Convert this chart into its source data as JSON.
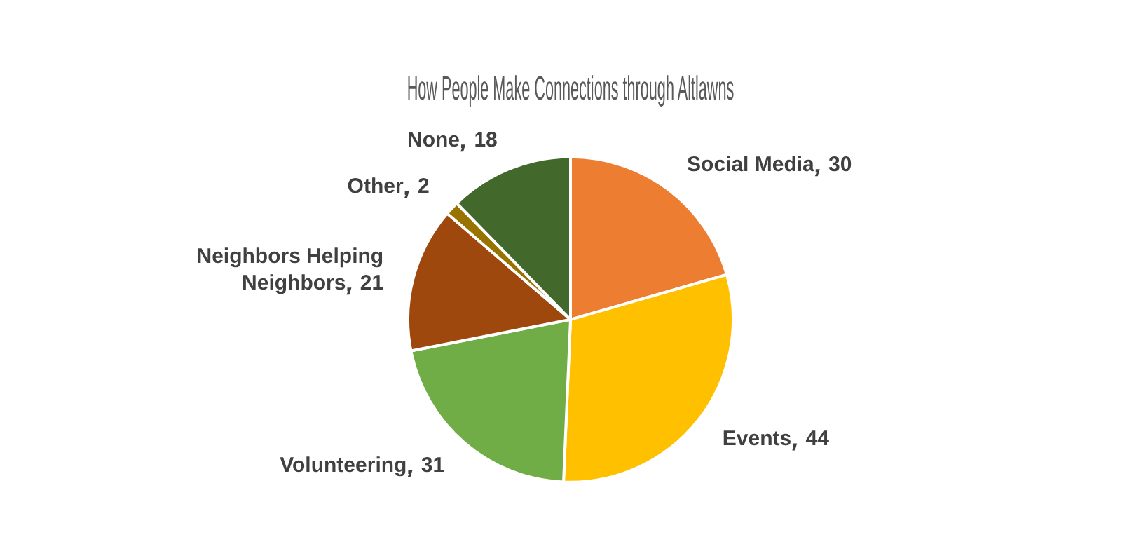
{
  "chart_data": {
    "type": "pie",
    "title": "How People Make Connections through Altlawns",
    "categories": [
      "Social Media",
      "Events",
      "Volunteering",
      "Neighbors Helping Neighbors",
      "Other",
      "None"
    ],
    "values": [
      30,
      44,
      31,
      21,
      2,
      18
    ],
    "colors": [
      "#ed7d31",
      "#ffc000",
      "#70ad47",
      "#9e480e",
      "#997300",
      "#43682b"
    ],
    "data_labels": true,
    "legend": false
  }
}
